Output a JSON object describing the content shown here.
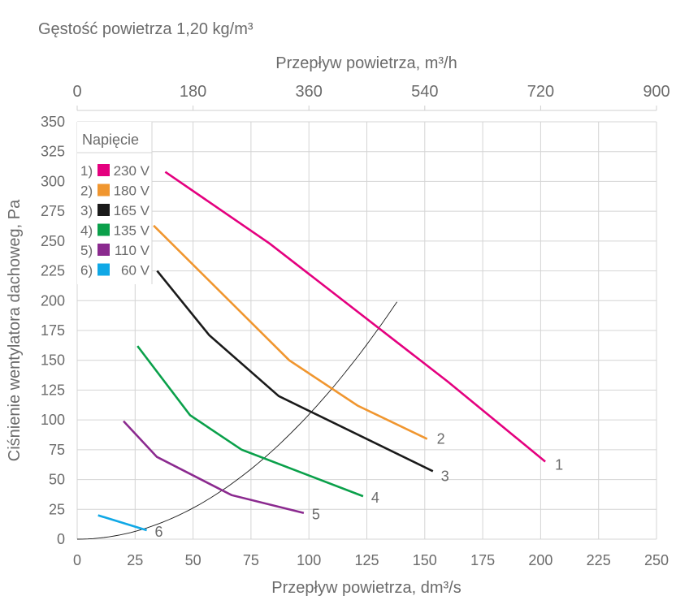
{
  "chart_data": {
    "type": "line",
    "title": "Gęstość powietrza 1,20 kg/m³",
    "xlabel": "Przepływ powietrza, dm³/s",
    "x2label": "Przepływ powietrza, m³/h",
    "ylabel": "Ciśnienie wentylatora dachoweg, Pa",
    "xlim": [
      0,
      250
    ],
    "x2lim": [
      0,
      900
    ],
    "ylim": [
      0,
      350
    ],
    "xticks": [
      "0",
      "25",
      "50",
      "75",
      "100",
      "125",
      "150",
      "175",
      "200",
      "225",
      "250"
    ],
    "x2ticks": [
      "0",
      "180",
      "360",
      "540",
      "720",
      "900"
    ],
    "yticks": [
      "0",
      "25",
      "50",
      "75",
      "100",
      "125",
      "150",
      "175",
      "200",
      "225",
      "250",
      "275",
      "300",
      "325",
      "350"
    ],
    "grid": true,
    "legend": {
      "title": "Napięcie",
      "placement": "top-left"
    },
    "series": [
      {
        "name": "230 V",
        "prefix": "1)",
        "label": "1",
        "color": "#e4007f",
        "points": [
          [
            38,
            308
          ],
          [
            83,
            248
          ],
          [
            160,
            132
          ],
          [
            202,
            65
          ]
        ]
      },
      {
        "name": "180 V",
        "prefix": "2)",
        "label": "2",
        "color": "#f0962f",
        "points": [
          [
            33,
            263
          ],
          [
            91.5,
            150
          ],
          [
            121,
            112
          ],
          [
            151,
            84
          ]
        ]
      },
      {
        "name": "165 V",
        "prefix": "3)",
        "label": "3",
        "color": "#1a1a1a",
        "points": [
          [
            34.5,
            225
          ],
          [
            57,
            171
          ],
          [
            87,
            120
          ],
          [
            153.5,
            57
          ]
        ]
      },
      {
        "name": "135 V",
        "prefix": "4)",
        "label": "4",
        "color": "#0aa04a",
        "points": [
          [
            26,
            162
          ],
          [
            48.7,
            104
          ],
          [
            71,
            75
          ],
          [
            123.4,
            36
          ]
        ]
      },
      {
        "name": "110 V",
        "prefix": "5)",
        "label": "5",
        "color": "#8b2a8f",
        "points": [
          [
            20,
            99
          ],
          [
            34.4,
            69
          ],
          [
            66.6,
            37
          ],
          [
            97.8,
            22
          ]
        ]
      },
      {
        "name": "60 V",
        "prefix": "6)",
        "label": "6",
        "color": "#10a8e6",
        "points": [
          [
            9,
            20
          ],
          [
            30,
            7.5
          ]
        ]
      }
    ],
    "system_curve": {
      "color": "#1a1a1a",
      "coefficient": 0.01045,
      "x_end": 138
    }
  }
}
